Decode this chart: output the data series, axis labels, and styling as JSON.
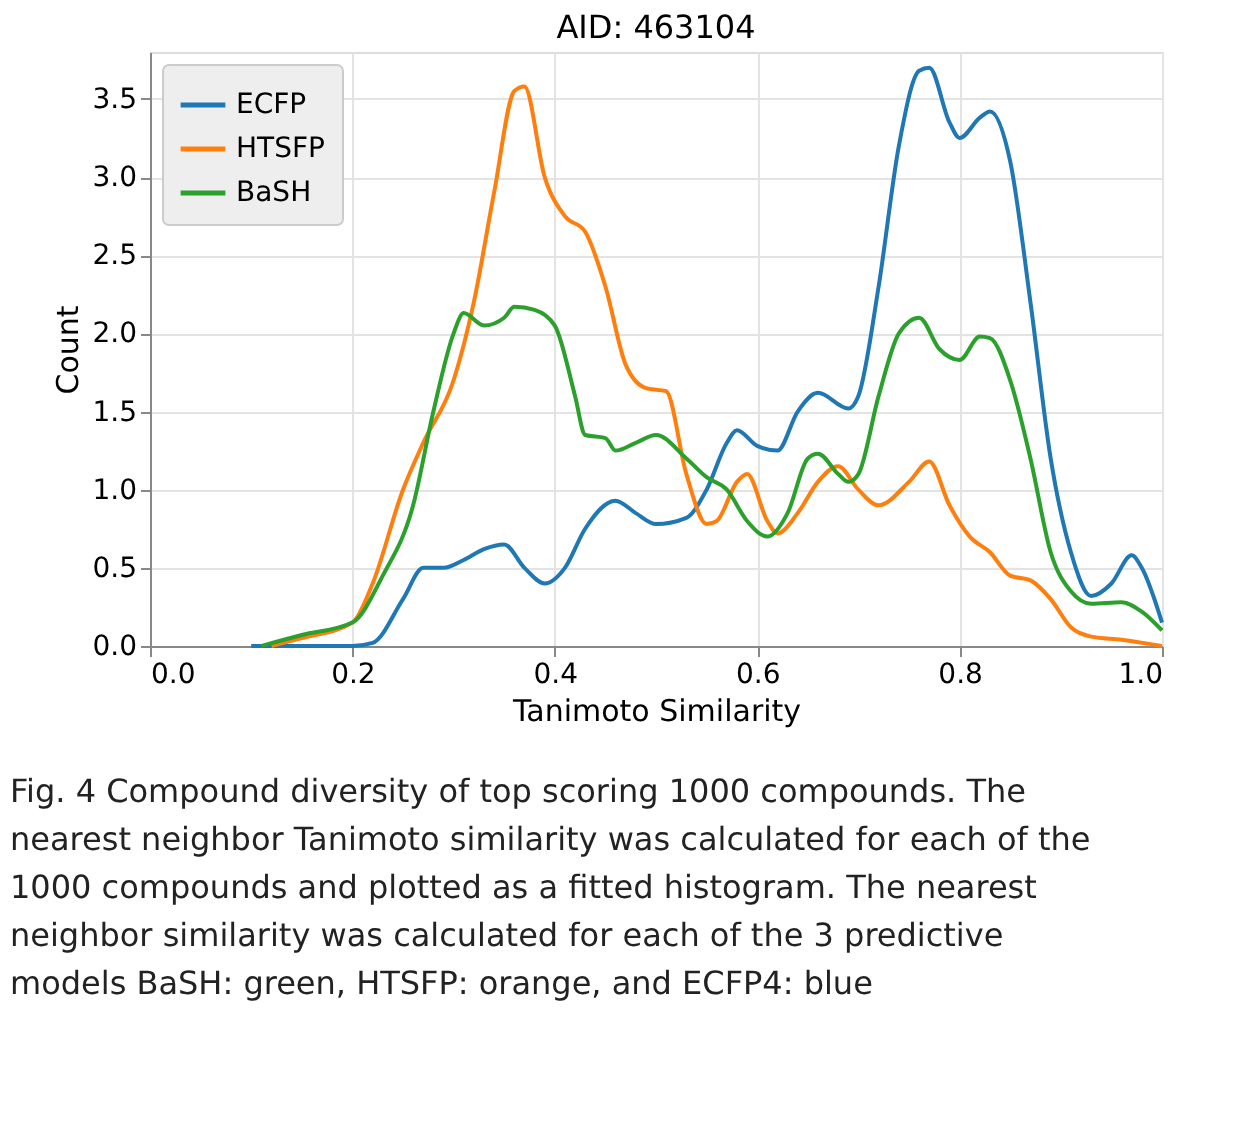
{
  "chart_data": {
    "type": "line",
    "title": "AID: 463104",
    "xlabel": "Tanimoto Similarity",
    "ylabel": "Count",
    "xlim": [
      0.0,
      1.0
    ],
    "xticks": [
      {
        "value": 0,
        "label": "0.0"
      },
      0.2,
      0.4,
      0.6,
      0.8,
      {
        "value": 1,
        "label": "1.0"
      }
    ],
    "ylim": [
      0.0,
      3.8
    ],
    "yticks": [
      {
        "value": 0,
        "label": "0.0"
      },
      0.5,
      {
        "value": 1,
        "label": "1.0"
      },
      1.5,
      {
        "value": 2,
        "label": "2.0"
      },
      2.5,
      {
        "value": 3,
        "label": "3.0"
      },
      3.5
    ],
    "grid": true,
    "legend": "top left",
    "line_style": "solid",
    "marker": "none",
    "series": [
      {
        "name": "ECFP",
        "color": "#1f77b4",
        "x": [
          0.1,
          0.2,
          0.22,
          0.25,
          0.27,
          0.29,
          0.31,
          0.33,
          0.35,
          0.37,
          0.39,
          0.41,
          0.43,
          0.46,
          0.48,
          0.5,
          0.53,
          0.55,
          0.57,
          0.58,
          0.6,
          0.62,
          0.64,
          0.66,
          0.69,
          0.7,
          0.72,
          0.74,
          0.76,
          0.77,
          0.79,
          0.8,
          0.82,
          0.83,
          0.85,
          0.87,
          0.89,
          0.91,
          0.93,
          0.95,
          0.97,
          0.98,
          1.0
        ],
        "values": [
          0.0,
          0.0,
          0.02,
          0.3,
          0.5,
          0.5,
          0.55,
          0.62,
          0.65,
          0.5,
          0.4,
          0.5,
          0.75,
          0.93,
          0.85,
          0.78,
          0.82,
          1.0,
          1.3,
          1.38,
          1.28,
          1.25,
          1.5,
          1.62,
          1.52,
          1.6,
          2.3,
          3.2,
          3.68,
          3.7,
          3.35,
          3.25,
          3.38,
          3.42,
          3.1,
          2.2,
          1.2,
          0.6,
          0.32,
          0.4,
          0.58,
          0.5,
          0.15
        ]
      },
      {
        "name": "HTSFP",
        "color": "#ff7f0e",
        "x": [
          0.12,
          0.15,
          0.2,
          0.22,
          0.25,
          0.27,
          0.3,
          0.32,
          0.34,
          0.36,
          0.37,
          0.39,
          0.41,
          0.43,
          0.45,
          0.47,
          0.49,
          0.51,
          0.53,
          0.55,
          0.56,
          0.58,
          0.59,
          0.61,
          0.62,
          0.64,
          0.66,
          0.68,
          0.7,
          0.72,
          0.75,
          0.77,
          0.79,
          0.81,
          0.83,
          0.85,
          0.87,
          0.89,
          0.91,
          0.93,
          0.96,
          1.0
        ],
        "values": [
          0.0,
          0.05,
          0.15,
          0.4,
          1.0,
          1.3,
          1.7,
          2.2,
          2.9,
          3.55,
          3.58,
          3.0,
          2.75,
          2.65,
          2.3,
          1.8,
          1.65,
          1.63,
          1.1,
          0.78,
          0.8,
          1.05,
          1.1,
          0.8,
          0.72,
          0.85,
          1.05,
          1.15,
          1.0,
          0.9,
          1.05,
          1.18,
          0.9,
          0.7,
          0.6,
          0.45,
          0.42,
          0.3,
          0.12,
          0.06,
          0.04,
          0.0
        ]
      },
      {
        "name": "BaSH",
        "color": "#2ca02c",
        "x": [
          0.11,
          0.15,
          0.2,
          0.23,
          0.26,
          0.28,
          0.3,
          0.31,
          0.33,
          0.35,
          0.36,
          0.38,
          0.4,
          0.42,
          0.43,
          0.45,
          0.46,
          0.48,
          0.5,
          0.53,
          0.55,
          0.57,
          0.59,
          0.61,
          0.63,
          0.65,
          0.66,
          0.68,
          0.69,
          0.7,
          0.72,
          0.74,
          0.76,
          0.78,
          0.8,
          0.82,
          0.83,
          0.85,
          0.87,
          0.89,
          0.91,
          0.93,
          0.96,
          0.98,
          1.0
        ],
        "values": [
          0.0,
          0.07,
          0.15,
          0.45,
          0.9,
          1.5,
          2.0,
          2.13,
          2.05,
          2.1,
          2.17,
          2.15,
          2.05,
          1.6,
          1.35,
          1.33,
          1.25,
          1.3,
          1.35,
          1.2,
          1.08,
          1.0,
          0.8,
          0.7,
          0.85,
          1.2,
          1.23,
          1.1,
          1.05,
          1.1,
          1.6,
          2.0,
          2.1,
          1.9,
          1.83,
          1.98,
          1.97,
          1.7,
          1.2,
          0.6,
          0.35,
          0.27,
          0.28,
          0.22,
          0.1
        ]
      }
    ],
    "annotations": [
      "Fig. 4  Compound diversity of top scoring 1000 compounds. The nearest neighbor Tanimoto similarity was calculated for each of the 1000 compounds and plotted as a fitted histogram. The nearest neighbor similarity was calculated for each of the 3 predictive models BaSH: green, HTSFP: orange, and ECFP4: blue"
    ]
  }
}
